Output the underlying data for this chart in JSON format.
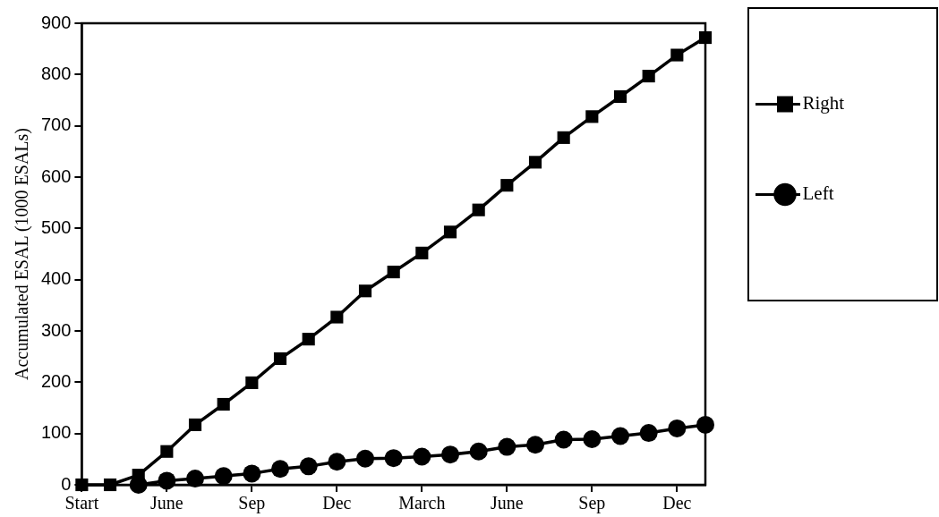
{
  "chart_data": {
    "type": "line",
    "ylabel": "Accumulated ESAL (1000 ESALs)",
    "categories": [
      "Start",
      null,
      null,
      "June",
      null,
      null,
      "Sep",
      null,
      null,
      "Dec",
      null,
      null,
      "March",
      null,
      null,
      "June",
      null,
      null,
      "Sep",
      null,
      null,
      "Dec",
      null
    ],
    "series": [
      {
        "name": "Right",
        "color": "#000000",
        "marker": "square",
        "values": [
          0,
          0,
          19,
          65,
          117,
          157,
          199,
          246,
          284,
          327,
          378,
          415,
          452,
          493,
          536,
          584,
          629,
          677,
          718,
          757,
          797,
          838,
          872
        ]
      },
      {
        "name": "Left",
        "color": "#000000",
        "marker": "circle",
        "values": [
          null,
          null,
          0,
          8,
          12,
          17,
          22,
          31,
          36,
          45,
          51,
          52,
          55,
          59,
          65,
          74,
          78,
          88,
          89,
          95,
          101,
          110,
          117
        ]
      }
    ],
    "ylim": [
      0,
      900
    ],
    "yticks": [
      0,
      100,
      200,
      300,
      400,
      500,
      600,
      700,
      800,
      900
    ],
    "grid": false,
    "legend": "right",
    "line_style": "solid"
  }
}
